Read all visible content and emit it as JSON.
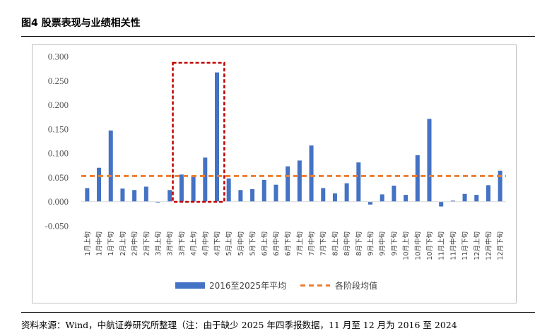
{
  "header": {
    "figure_title": "图4  股票表现与业绩相关性"
  },
  "footer": {
    "source_note": "资料来源：Wind，中航证券研究所整理（注：由于缺少 2025 年四季报数据，11 月至 12 月为 2016 至 2024"
  },
  "chart_data": {
    "type": "bar",
    "ylim": [
      -0.05,
      0.3
    ],
    "ytick_labels": [
      "0.300",
      "0.250",
      "0.200",
      "0.150",
      "0.100",
      "0.050",
      "0.000",
      "-0.050"
    ],
    "yticks": [
      0.3,
      0.25,
      0.2,
      0.15,
      0.1,
      0.05,
      0.0,
      -0.05
    ],
    "grid": false,
    "legend_position": "bottom",
    "categories": [
      "1月上旬",
      "1月中旬",
      "1月下旬",
      "2月上旬",
      "2月中旬",
      "2月下旬",
      "3月上旬",
      "3月中旬",
      "3月下旬",
      "4月上旬",
      "4月中旬",
      "4月下旬",
      "5月上旬",
      "5月中旬",
      "5月下旬",
      "6月上旬",
      "6月中旬",
      "6月下旬",
      "7月上旬",
      "7月中旬",
      "7月下旬",
      "8月上旬",
      "8月中旬",
      "8月下旬",
      "9月上旬",
      "9月中旬",
      "9月下旬",
      "10月上旬",
      "10月中旬",
      "10月下旬",
      "11月上旬",
      "11月中旬",
      "11月下旬",
      "12月上旬",
      "12月中旬",
      "12月下旬"
    ],
    "series": [
      {
        "name": "2016至2025年平均",
        "type": "bar",
        "color": "#4472c4",
        "values": [
          0.028,
          0.07,
          0.147,
          0.027,
          0.024,
          0.031,
          -0.002,
          0.024,
          0.056,
          0.053,
          0.091,
          0.267,
          0.048,
          0.024,
          0.026,
          0.045,
          0.035,
          0.073,
          0.085,
          0.116,
          0.028,
          0.017,
          0.038,
          0.081,
          -0.006,
          0.015,
          0.033,
          0.014,
          0.096,
          0.171,
          -0.01,
          0.002,
          0.016,
          0.014,
          0.034,
          0.064
        ]
      },
      {
        "name": "各阶段均值",
        "type": "line",
        "style": "dashed",
        "color": "#ed7d31",
        "value": 0.053
      }
    ],
    "highlight": {
      "from_category": "3月下旬",
      "to_category": "4月下旬",
      "color": "#c00000",
      "style": "dashed"
    }
  }
}
